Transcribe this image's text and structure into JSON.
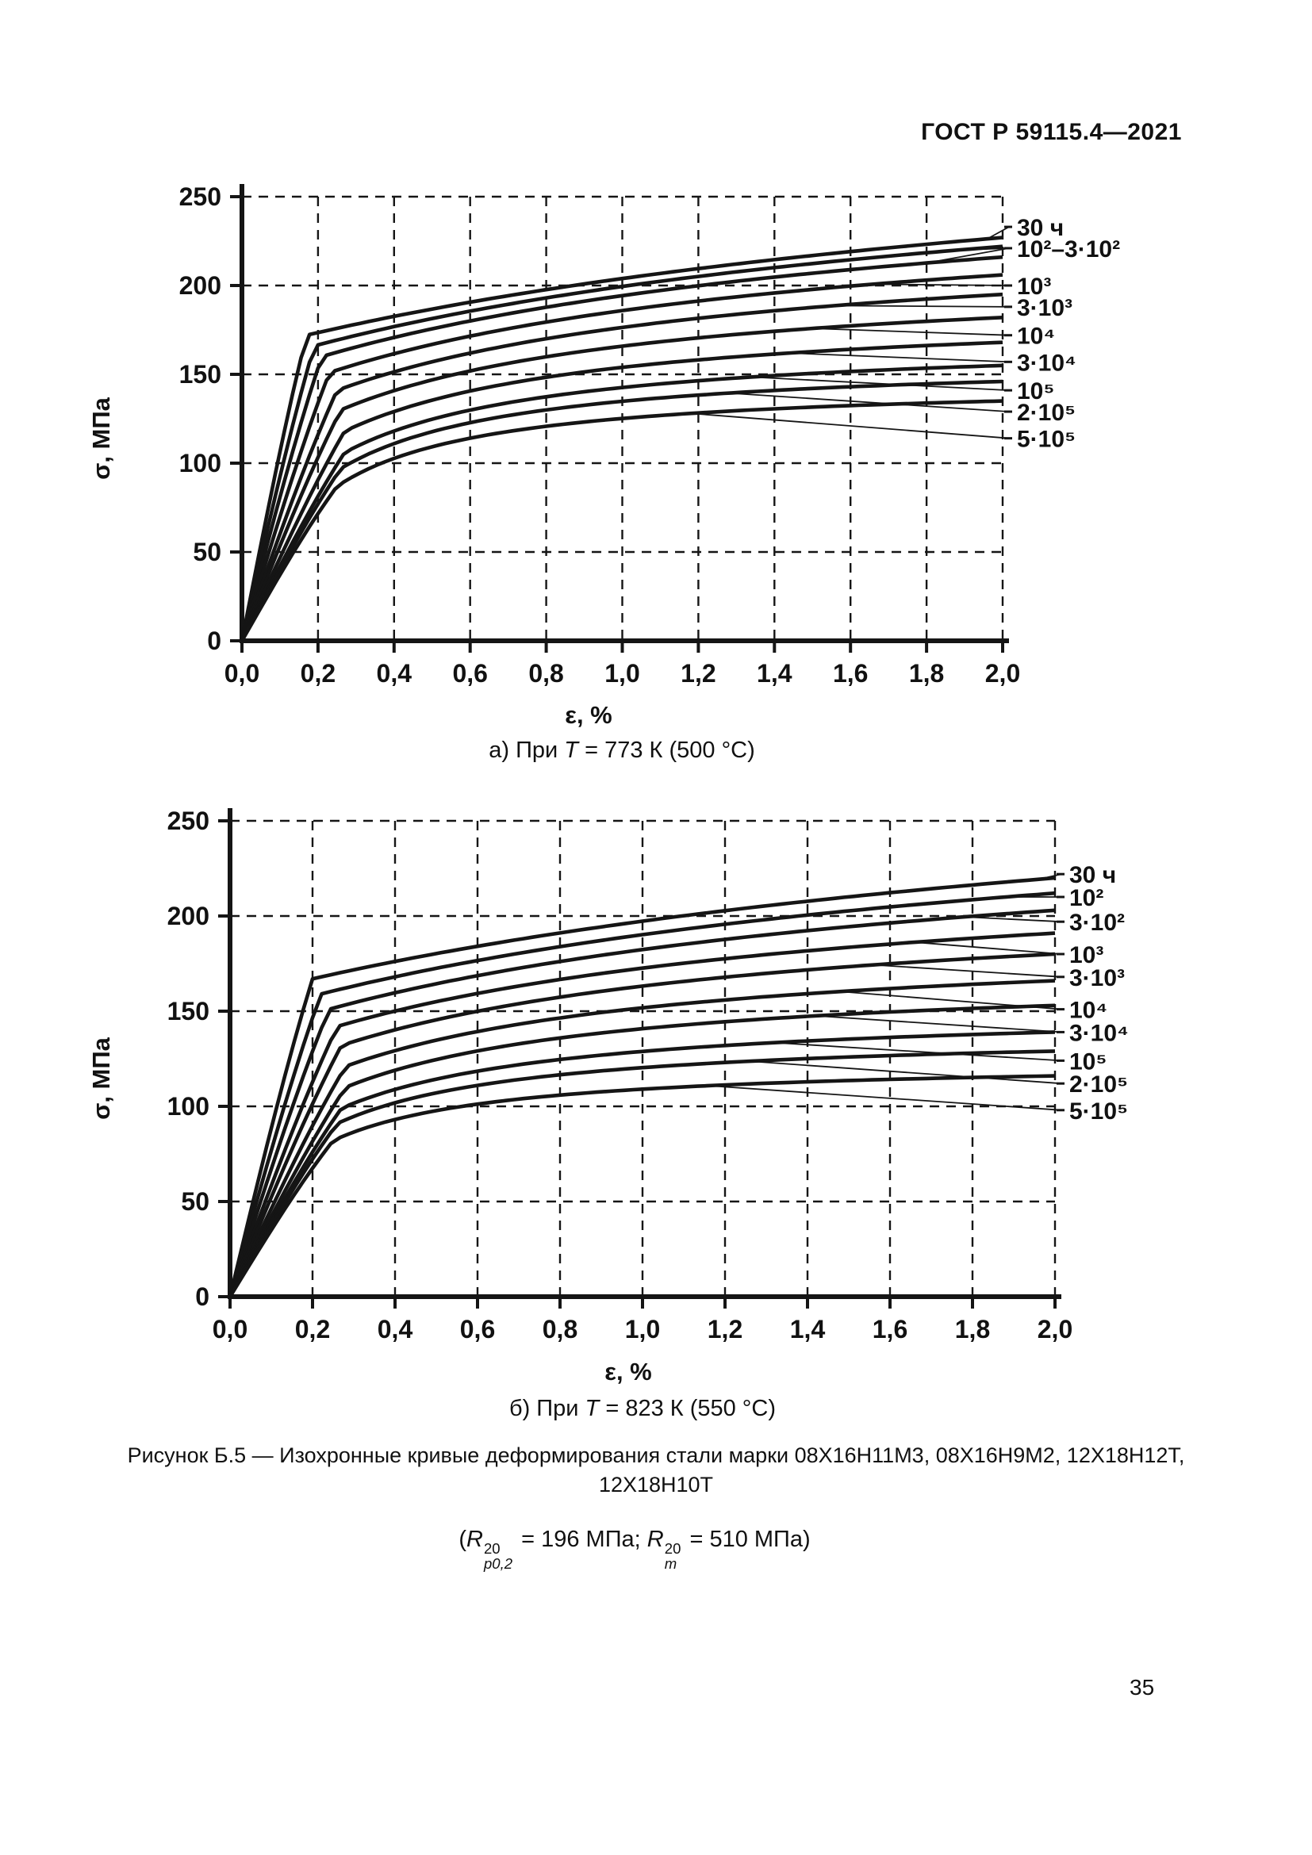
{
  "doc": {
    "header": "ГОСТ Р 59115.4—2021",
    "page_number": "35"
  },
  "figure": {
    "caption_line1": "Рисунок Б.5 — Изохронные кривые деформирования стали марки 08Х16Н11М3, 08Х16Н9М2, 12Х18Н12Т,",
    "caption_line2": "12Х18Н10Т",
    "formula": {
      "open": "(",
      "var1": "R",
      "sup1": "20",
      "sub1": "p0,2",
      "eq1": " = 196 МПа; ",
      "var2": "R",
      "sup2": "20",
      "sub2": "m",
      "eq2": " = 510 МПа)"
    }
  },
  "chart_data": [
    {
      "type": "line",
      "title": "а) При T = 773 К (500 °С)",
      "caption": {
        "prefix": "а) При ",
        "var": "T",
        "rest": " = 773 К (500 °С)"
      },
      "xlabel": "ε, %",
      "ylabel": "σ, МПа",
      "xlim": [
        0,
        2.0
      ],
      "ylim": [
        0,
        250
      ],
      "grid": "dashed",
      "legend_position": "right-of-plot",
      "x_tick_labels": [
        "0,0",
        "0,2",
        "0,4",
        "0,6",
        "0,8",
        "1,0",
        "1,2",
        "1,4",
        "1,6",
        "1,8",
        "2,0"
      ],
      "y_tick_labels": [
        "0",
        "50",
        "100",
        "150",
        "200",
        "250"
      ],
      "series_meaning": "isochronous stress-strain curves, time in hours",
      "series": [
        {
          "name": "30 ч",
          "knee_strain": 0.17,
          "knee_stress": 172,
          "end_stress": 227,
          "shape": 1.5,
          "attach": 1.96
        },
        {
          "name": "10²",
          "knee_strain": 0.19,
          "knee_stress": 166,
          "end_stress": 222,
          "shape": 1.2,
          "attach": 1.88
        },
        {
          "name": "3·10²",
          "knee_strain": 0.21,
          "knee_stress": 160,
          "end_stress": 216,
          "shape": 1.0,
          "attach": 1.8
        },
        {
          "name": "10³",
          "knee_strain": 0.23,
          "knee_stress": 151,
          "end_stress": 206,
          "shape": 0.8,
          "attach": 1.66
        },
        {
          "name": "3·10³",
          "knee_strain": 0.25,
          "knee_stress": 141,
          "end_stress": 195,
          "shape": 0.65,
          "attach": 1.56
        },
        {
          "name": "10⁴",
          "knee_strain": 0.26,
          "knee_stress": 130,
          "end_stress": 182,
          "shape": 0.5,
          "attach": 1.5
        },
        {
          "name": "3·10⁴",
          "knee_strain": 0.27,
          "knee_stress": 118,
          "end_stress": 168,
          "shape": 0.4,
          "attach": 1.44
        },
        {
          "name": "10⁵",
          "knee_strain": 0.27,
          "knee_stress": 106,
          "end_stress": 155,
          "shape": 0.33,
          "attach": 1.34
        },
        {
          "name": "2·10⁵",
          "knee_strain": 0.26,
          "knee_stress": 97,
          "end_stress": 146,
          "shape": 0.28,
          "attach": 1.28
        },
        {
          "name": "5·10⁵",
          "knee_strain": 0.25,
          "knee_stress": 87,
          "end_stress": 135,
          "shape": 0.24,
          "attach": 1.18
        }
      ],
      "labels": [
        {
          "text": "30 ч",
          "stress": 233,
          "series": [
            0
          ]
        },
        {
          "text": "10²–3·10²",
          "stress": 221,
          "series": [
            1,
            2
          ]
        },
        {
          "text": "10³",
          "stress": 200,
          "series": [
            3
          ]
        },
        {
          "text": "3·10³",
          "stress": 188,
          "series": [
            4
          ]
        },
        {
          "text": "10⁴",
          "stress": 172,
          "series": [
            5
          ]
        },
        {
          "text": "3·10⁴",
          "stress": 157,
          "series": [
            6
          ]
        },
        {
          "text": "10⁵",
          "stress": 141,
          "series": [
            7
          ]
        },
        {
          "text": "2·10⁵",
          "stress": 129,
          "series": [
            8
          ]
        },
        {
          "text": "5·10⁵",
          "stress": 114,
          "series": [
            9
          ]
        }
      ]
    },
    {
      "type": "line",
      "title": "б) При T = 823 К (550 °С)",
      "caption": {
        "prefix": "б) При ",
        "var": "T",
        "rest": " = 823 К (550 °С)"
      },
      "xlabel": "ε, %",
      "ylabel": "σ, МПа",
      "xlim": [
        0,
        2.0
      ],
      "ylim": [
        0,
        250
      ],
      "grid": "dashed",
      "legend_position": "right-of-plot",
      "x_tick_labels": [
        "0,0",
        "0,2",
        "0,4",
        "0,6",
        "0,8",
        "1,0",
        "1,2",
        "1,4",
        "1,6",
        "1,8",
        "2,0"
      ],
      "y_tick_labels": [
        "0",
        "50",
        "100",
        "150",
        "200",
        "250"
      ],
      "series_meaning": "isochronous stress-strain curves, time in hours",
      "series": [
        {
          "name": "30 ч",
          "knee_strain": 0.2,
          "knee_stress": 167,
          "end_stress": 220,
          "shape": 1.5,
          "attach": 1.96
        },
        {
          "name": "10²",
          "knee_strain": 0.22,
          "knee_stress": 159,
          "end_stress": 212,
          "shape": 1.2,
          "attach": 1.88
        },
        {
          "name": "3·10²",
          "knee_strain": 0.24,
          "knee_stress": 151,
          "end_stress": 203,
          "shape": 1.0,
          "attach": 1.78
        },
        {
          "name": "10³",
          "knee_strain": 0.26,
          "knee_stress": 142,
          "end_stress": 191,
          "shape": 0.8,
          "attach": 1.66
        },
        {
          "name": "3·10³",
          "knee_strain": 0.27,
          "knee_stress": 132,
          "end_stress": 180,
          "shape": 0.65,
          "attach": 1.56
        },
        {
          "name": "10⁴",
          "knee_strain": 0.28,
          "knee_stress": 121,
          "end_stress": 166,
          "shape": 0.5,
          "attach": 1.48
        },
        {
          "name": "3·10⁴",
          "knee_strain": 0.28,
          "knee_stress": 110,
          "end_stress": 153,
          "shape": 0.4,
          "attach": 1.42
        },
        {
          "name": "10⁵",
          "knee_strain": 0.27,
          "knee_stress": 99,
          "end_stress": 139,
          "shape": 0.33,
          "attach": 1.32
        },
        {
          "name": "2·10⁵",
          "knee_strain": 0.26,
          "knee_stress": 91,
          "end_stress": 129,
          "shape": 0.28,
          "attach": 1.26
        },
        {
          "name": "5·10⁵",
          "knee_strain": 0.25,
          "knee_stress": 82,
          "end_stress": 116,
          "shape": 0.24,
          "attach": 1.16
        }
      ],
      "labels": [
        {
          "text": "30 ч",
          "stress": 222,
          "series": [
            0
          ]
        },
        {
          "text": "10²",
          "stress": 210,
          "series": [
            1
          ]
        },
        {
          "text": "3·10²",
          "stress": 197,
          "series": [
            2
          ]
        },
        {
          "text": "10³",
          "stress": 180,
          "series": [
            3
          ]
        },
        {
          "text": "3·10³",
          "stress": 168,
          "series": [
            4
          ]
        },
        {
          "text": "10⁴",
          "stress": 151,
          "series": [
            5
          ]
        },
        {
          "text": "3·10⁴",
          "stress": 139,
          "series": [
            6
          ]
        },
        {
          "text": "10⁵",
          "stress": 124,
          "series": [
            7
          ]
        },
        {
          "text": "2·10⁵",
          "stress": 112,
          "series": [
            8
          ]
        },
        {
          "text": "5·10⁵",
          "stress": 98,
          "series": [
            9
          ]
        }
      ]
    }
  ]
}
